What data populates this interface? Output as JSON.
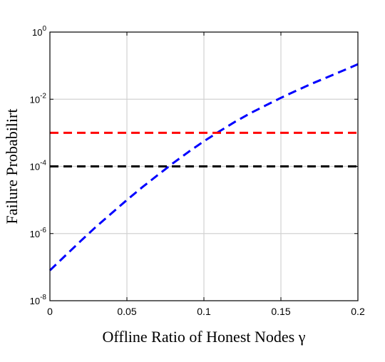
{
  "chart_data": {
    "type": "line",
    "title": "",
    "xlabel": "Offline Ratio of Honest Nodes γ",
    "ylabel": "Failure Probabilirt",
    "xlim": [
      0,
      0.2
    ],
    "ylim": [
      1e-08,
      1
    ],
    "yscale": "log",
    "grid": true,
    "x_ticks": [
      0,
      0.05,
      0.1,
      0.15,
      0.2
    ],
    "x_tick_labels": [
      "0",
      "0.05",
      "0.1",
      "0.15",
      "0.2"
    ],
    "y_ticks": [
      1e-08,
      1e-06,
      0.0001,
      0.01,
      1
    ],
    "y_tick_labels": [
      {
        "base": "10",
        "exp": "-8"
      },
      {
        "base": "10",
        "exp": "-6"
      },
      {
        "base": "10",
        "exp": "-4"
      },
      {
        "base": "10",
        "exp": "-2"
      },
      {
        "base": "10",
        "exp": "0"
      }
    ],
    "series": [
      {
        "color": "#0000ff",
        "style": "dashed",
        "x": [
          0,
          0.01,
          0.02,
          0.03,
          0.04,
          0.05,
          0.06,
          0.07,
          0.08,
          0.09,
          0.1,
          0.11,
          0.12,
          0.13,
          0.14,
          0.15,
          0.16,
          0.17,
          0.18,
          0.19,
          0.2
        ],
        "y": [
          8e-08,
          2.2e-07,
          6e-07,
          1.6e-06,
          4e-06,
          1e-05,
          2.4e-05,
          5.5e-05,
          0.000125,
          0.00027,
          0.00056,
          0.0011,
          0.0021,
          0.0038,
          0.0065,
          0.011,
          0.018,
          0.029,
          0.045,
          0.07,
          0.11
        ]
      },
      {
        "color": "#ff0000",
        "style": "dashed",
        "x": [
          0,
          0.2
        ],
        "y": [
          0.001,
          0.001
        ]
      },
      {
        "color": "#000000",
        "style": "dashed",
        "x": [
          0,
          0.2
        ],
        "y": [
          0.0001,
          0.0001
        ]
      }
    ]
  }
}
